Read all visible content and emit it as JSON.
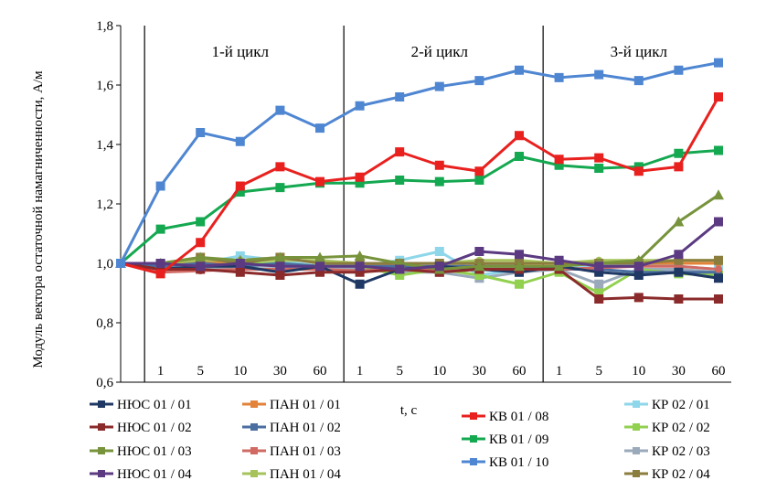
{
  "chart_data": {
    "type": "line",
    "title": "",
    "xlabel": "t, c",
    "ylabel": "Модуль вектора остаточной намагниченности, А/м",
    "ylim": [
      0.6,
      1.8
    ],
    "yticks": [
      "0,6",
      "0,8",
      "1,0",
      "1,2",
      "1,4",
      "1,6",
      "1,8"
    ],
    "grid": false,
    "categories": [
      "",
      "1",
      "5",
      "10",
      "30",
      "60",
      "1",
      "5",
      "10",
      "30",
      "60",
      "1",
      "5",
      "10",
      "30",
      "60"
    ],
    "cycles": [
      {
        "label": "1-й цикл",
        "from": 1,
        "to": 5
      },
      {
        "label": "2-й цикл",
        "from": 6,
        "to": 10
      },
      {
        "label": "3-й цикл",
        "from": 11,
        "to": 15
      }
    ],
    "series": [
      {
        "name": "НЮС 01 / 01",
        "color": "#1f3864",
        "values": [
          1.0,
          0.98,
          0.99,
          0.99,
          0.97,
          0.99,
          0.93,
          0.98,
          0.99,
          0.98,
          0.97,
          0.99,
          0.97,
          0.96,
          0.97,
          0.95
        ]
      },
      {
        "name": "НЮС 01 / 02",
        "color": "#8b2a2a",
        "values": [
          1.0,
          0.98,
          0.98,
          0.97,
          0.96,
          0.97,
          0.97,
          0.98,
          0.97,
          0.98,
          0.98,
          0.98,
          0.88,
          0.885,
          0.88,
          0.88
        ]
      },
      {
        "name": "НЮС 01 / 03",
        "color": "#77933c",
        "values": [
          1.0,
          1.0,
          1.02,
          1.01,
          1.02,
          1.02,
          1.025,
          1.0,
          0.98,
          0.99,
          0.99,
          0.99,
          1.0,
          1.01,
          1.14,
          1.23
        ]
      },
      {
        "name": "НЮС 01 / 04",
        "color": "#5b3a82",
        "values": [
          1.0,
          1.0,
          0.99,
          1.0,
          0.99,
          0.99,
          0.99,
          0.98,
          0.99,
          1.04,
          1.03,
          1.01,
          0.99,
          0.99,
          1.03,
          1.14
        ]
      },
      {
        "name": "ПАН 01 / 01",
        "color": "#e3833a",
        "values": [
          1.0,
          1.0,
          1.0,
          1.01,
          1.02,
          1.0,
          1.0,
          0.99,
          0.99,
          0.99,
          0.99,
          0.99,
          1.0,
          1.0,
          1.0,
          1.0
        ]
      },
      {
        "name": "ПАН 01 / 02",
        "color": "#4a6ea0",
        "values": [
          1.0,
          0.99,
          1.0,
          0.99,
          1.0,
          0.99,
          0.99,
          0.99,
          0.99,
          0.99,
          0.99,
          0.98,
          0.98,
          0.97,
          0.97,
          0.97
        ]
      },
      {
        "name": "ПАН 01 / 03",
        "color": "#d06a63",
        "values": [
          1.0,
          0.97,
          0.975,
          0.98,
          0.98,
          0.98,
          0.975,
          0.98,
          0.98,
          0.98,
          0.98,
          0.98,
          0.985,
          0.99,
          0.99,
          0.98
        ]
      },
      {
        "name": "ПАН 01 / 04",
        "color": "#a6c35b",
        "values": [
          1.0,
          1.0,
          1.01,
          1.01,
          1.01,
          1.01,
          1.0,
          1.0,
          1.0,
          1.01,
          1.01,
          1.0,
          1.01,
          1.01,
          1.01,
          1.01
        ]
      },
      {
        "name": "КВ 01 / 08",
        "color": "#e8211f",
        "values": [
          1.0,
          0.965,
          1.07,
          1.26,
          1.325,
          1.275,
          1.29,
          1.375,
          1.33,
          1.31,
          1.43,
          1.35,
          1.355,
          1.31,
          1.325,
          1.56
        ]
      },
      {
        "name": "КВ 01 / 09",
        "color": "#14a850",
        "values": [
          1.0,
          1.115,
          1.14,
          1.24,
          1.255,
          1.27,
          1.27,
          1.28,
          1.275,
          1.28,
          1.36,
          1.33,
          1.32,
          1.325,
          1.37,
          1.38
        ]
      },
      {
        "name": "КВ 01 / 10",
        "color": "#4f86d2",
        "values": [
          1.0,
          1.26,
          1.44,
          1.41,
          1.515,
          1.455,
          1.53,
          1.56,
          1.595,
          1.615,
          1.65,
          1.625,
          1.635,
          1.615,
          1.65,
          1.675
        ]
      },
      {
        "name": "КР 02 / 01",
        "color": "#8ed6ea",
        "values": [
          1.0,
          0.99,
          1.0,
          1.025,
          1.01,
          0.99,
          0.99,
          1.01,
          1.04,
          0.96,
          0.98,
          0.99,
          0.99,
          1.0,
          0.99,
          0.98
        ]
      },
      {
        "name": "КР 02 / 02",
        "color": "#92d04f",
        "values": [
          1.0,
          1.0,
          1.0,
          1.0,
          1.0,
          0.99,
          0.99,
          0.96,
          0.98,
          0.96,
          0.93,
          0.97,
          0.9,
          0.98,
          0.965,
          0.96
        ]
      },
      {
        "name": "КР 02 / 03",
        "color": "#9aaabb",
        "values": [
          1.0,
          0.99,
          0.98,
          0.99,
          0.99,
          0.98,
          0.98,
          0.97,
          0.97,
          0.95,
          0.97,
          0.98,
          0.93,
          0.98,
          0.98,
          0.97
        ]
      },
      {
        "name": "КР 02 / 04",
        "color": "#8b7d3e",
        "values": [
          1.0,
          1.0,
          1.02,
          1.0,
          1.02,
          1.0,
          1.0,
          1.0,
          1.0,
          1.0,
          1.0,
          1.0,
          1.0,
          1.0,
          1.01,
          1.01
        ]
      }
    ]
  }
}
